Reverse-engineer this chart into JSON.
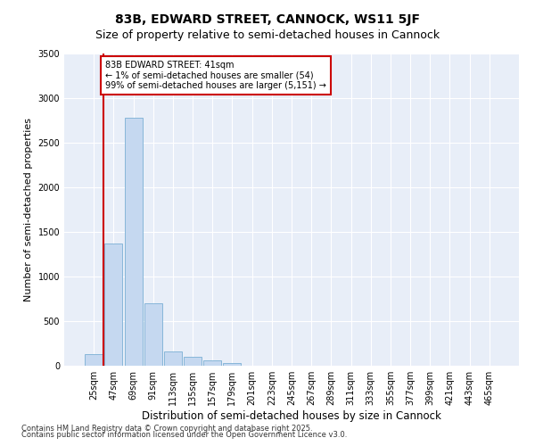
{
  "title_line1": "83B, EDWARD STREET, CANNOCK, WS11 5JF",
  "title_line2": "Size of property relative to semi-detached houses in Cannock",
  "xlabel": "Distribution of semi-detached houses by size in Cannock",
  "ylabel": "Number of semi-detached properties",
  "annotation_title": "83B EDWARD STREET: 41sqm",
  "annotation_line2": "← 1% of semi-detached houses are smaller (54)",
  "annotation_line3": "99% of semi-detached houses are larger (5,151) →",
  "footer_line1": "Contains HM Land Registry data © Crown copyright and database right 2025.",
  "footer_line2": "Contains public sector information licensed under the Open Government Licence v3.0.",
  "categories": [
    "25sqm",
    "47sqm",
    "69sqm",
    "91sqm",
    "113sqm",
    "135sqm",
    "157sqm",
    "179sqm",
    "201sqm",
    "223sqm",
    "245sqm",
    "267sqm",
    "289sqm",
    "311sqm",
    "333sqm",
    "355sqm",
    "377sqm",
    "399sqm",
    "421sqm",
    "443sqm",
    "465sqm"
  ],
  "values": [
    130,
    1370,
    2780,
    700,
    160,
    100,
    60,
    35,
    5,
    2,
    1,
    0,
    0,
    0,
    0,
    0,
    0,
    0,
    0,
    0,
    0
  ],
  "bar_color": "#c5d8f0",
  "bar_edge_color": "#7aafd4",
  "highlight_color": "#cc0000",
  "ylim": [
    0,
    3500
  ],
  "yticks": [
    0,
    500,
    1000,
    1500,
    2000,
    2500,
    3000,
    3500
  ],
  "background_color": "#e8eef8",
  "grid_color": "#ffffff",
  "annotation_box_color": "#cc0000",
  "title1_fontsize": 10,
  "title2_fontsize": 9,
  "xlabel_fontsize": 8.5,
  "ylabel_fontsize": 8,
  "tick_fontsize": 7,
  "annotation_fontsize": 7,
  "footer_fontsize": 6
}
